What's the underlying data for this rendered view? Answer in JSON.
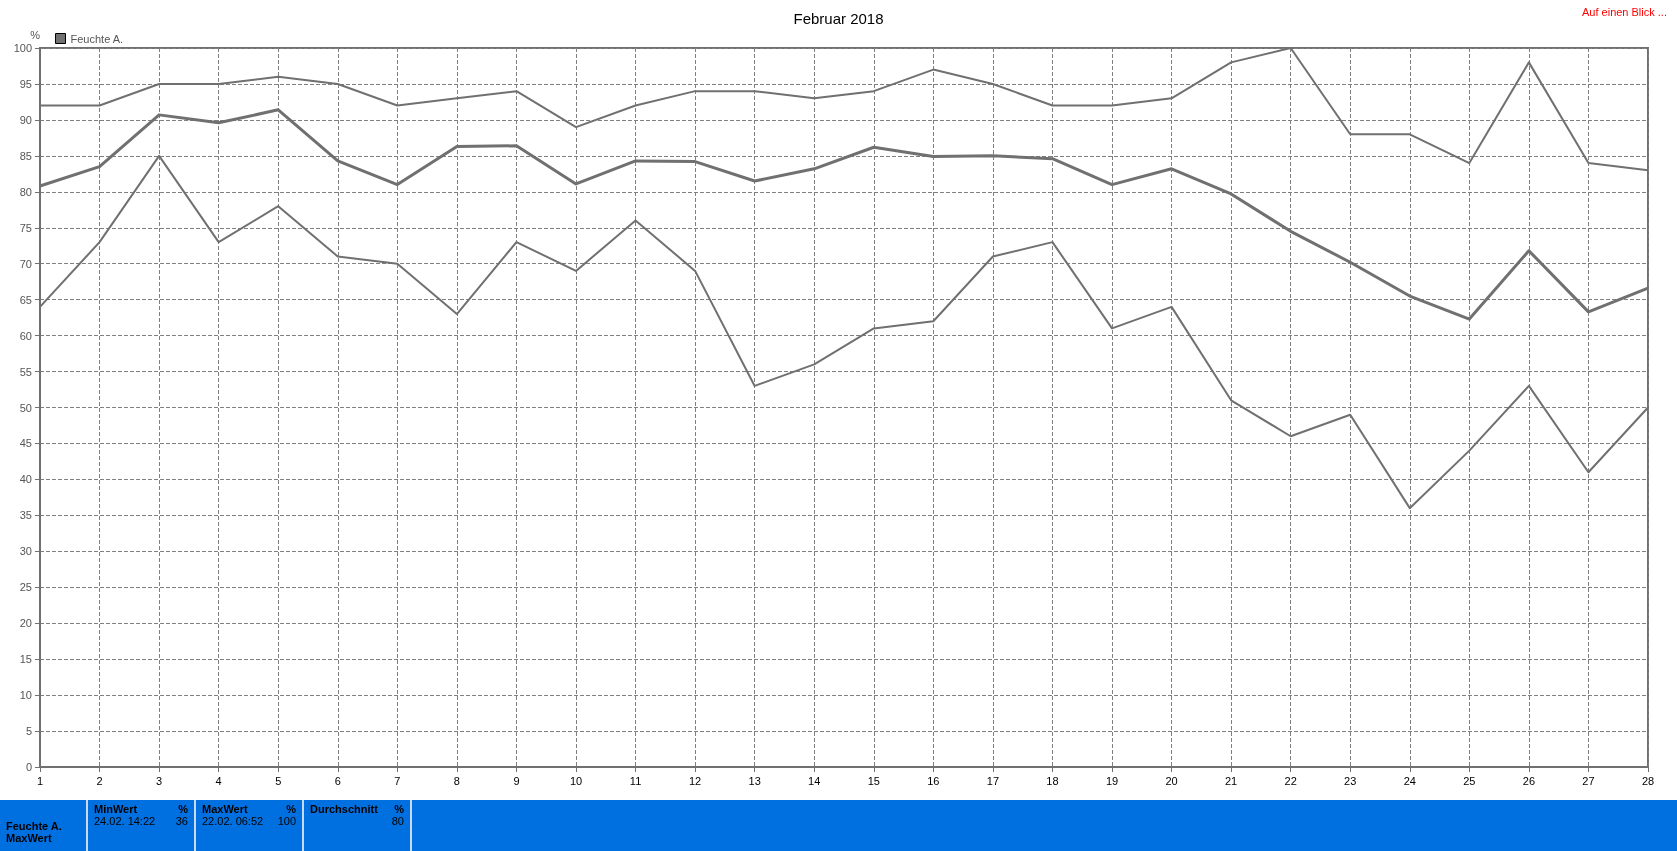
{
  "chart_data": {
    "type": "line",
    "title": "Februar 2018",
    "ylabel": "%",
    "x": [
      1,
      2,
      3,
      4,
      5,
      6,
      7,
      8,
      9,
      10,
      11,
      12,
      13,
      14,
      15,
      16,
      17,
      18,
      19,
      20,
      21,
      22,
      23,
      24,
      25,
      26,
      27,
      28
    ],
    "series": [
      {
        "color": "#707070",
        "values": [
          92,
          92,
          95,
          95,
          96,
          95,
          92,
          93,
          94,
          89,
          92,
          94,
          94,
          93,
          94,
          97,
          95,
          92,
          92,
          93,
          98,
          100,
          88,
          88,
          84,
          98,
          84,
          83
        ]
      },
      {
        "name": "Feuchte A.",
        "color": "#707070",
        "values": [
          80.8,
          83.5,
          90.7,
          89.6,
          91.4,
          84.3,
          81,
          86.3,
          86.4,
          81.1,
          84.3,
          84.2,
          81.5,
          83.2,
          86.2,
          84.9,
          85,
          84.6,
          81,
          83.2,
          79.7,
          74.5,
          70.2,
          65.5,
          62.3,
          71.8,
          63.3,
          66.6
        ]
      },
      {
        "color": "#707070",
        "values": [
          64,
          73,
          85,
          73,
          78,
          71,
          70,
          63,
          73,
          69,
          76,
          69,
          53,
          56,
          61,
          62,
          71,
          73,
          61,
          64,
          51,
          46,
          49,
          36,
          44,
          53,
          41,
          50
        ]
      }
    ],
    "xlim": [
      1,
      28
    ],
    "xticks": [
      1,
      2,
      3,
      4,
      5,
      6,
      7,
      8,
      9,
      10,
      11,
      12,
      13,
      14,
      15,
      16,
      17,
      18,
      19,
      20,
      21,
      22,
      23,
      24,
      25,
      26,
      27,
      28
    ],
    "ylim": [
      0,
      100
    ],
    "yticks": [
      0,
      5,
      10,
      15,
      20,
      25,
      30,
      35,
      40,
      45,
      50,
      55,
      60,
      65,
      70,
      75,
      80,
      85,
      90,
      95,
      100
    ],
    "grid": true,
    "legend": "top left",
    "marker": "none",
    "line_style": "solid",
    "annotations": [
      "Auf einen Blick ...",
      "Feuchte A.",
      "MaxWert",
      "MinWert",
      "%",
      "24.02.  14:22",
      "36",
      "MaxWert",
      "%",
      "22.02.  06:52",
      "100",
      "Durchschnitt",
      "%",
      "80"
    ]
  }
}
